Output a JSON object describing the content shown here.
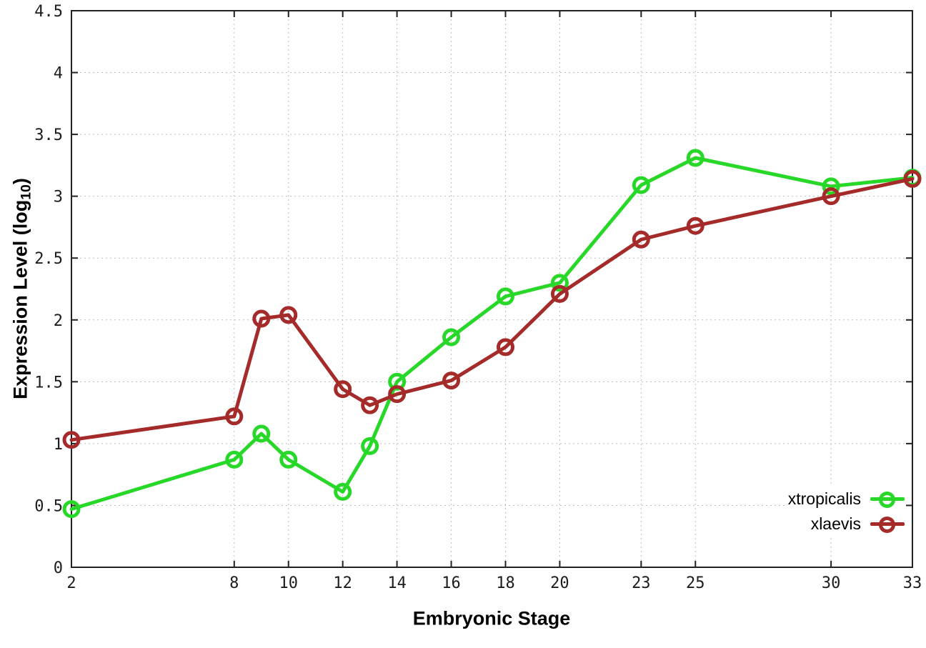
{
  "labels": {
    "xlabel": "Embryonic Stage",
    "ylabel_pre": "Expression Level (log",
    "ylabel_sub": "10",
    "ylabel_post": ")"
  },
  "chart_data": {
    "type": "line",
    "title": "",
    "xlabel": "Embryonic Stage",
    "ylabel": "Expression Level (log10)",
    "xlim": [
      2,
      33
    ],
    "ylim": [
      0,
      4.5
    ],
    "x_ticks": [
      2,
      8,
      10,
      12,
      14,
      16,
      18,
      20,
      23,
      25,
      30,
      33
    ],
    "y_ticks": [
      0,
      0.5,
      1,
      1.5,
      2,
      2.5,
      3,
      3.5,
      4,
      4.5
    ],
    "y_tick_labels": [
      "0",
      "0.5",
      "1",
      "1.5",
      "2",
      "2.5",
      "3",
      "3.5",
      "4",
      "4.5"
    ],
    "grid": true,
    "legend_position": "bottom-right",
    "x": [
      2,
      8,
      9,
      10,
      12,
      13,
      14,
      16,
      18,
      20,
      23,
      25,
      30,
      33
    ],
    "series": [
      {
        "name": "xtropicalis",
        "color": "#28d828",
        "marker": "open-circle",
        "values": [
          0.47,
          0.87,
          1.08,
          0.87,
          0.61,
          0.98,
          1.5,
          1.86,
          2.19,
          2.3,
          3.09,
          3.31,
          3.08,
          3.15
        ]
      },
      {
        "name": "xlaevis",
        "color": "#a52a2a",
        "marker": "open-circle",
        "values": [
          1.03,
          1.22,
          2.01,
          2.04,
          1.44,
          1.31,
          1.4,
          1.51,
          1.78,
          2.21,
          2.65,
          2.76,
          3.0,
          3.14
        ]
      }
    ],
    "style": {
      "axis_color": "#222222",
      "grid_color": "#bdbdbd",
      "tick_label_color": "#1c1c1c"
    }
  }
}
